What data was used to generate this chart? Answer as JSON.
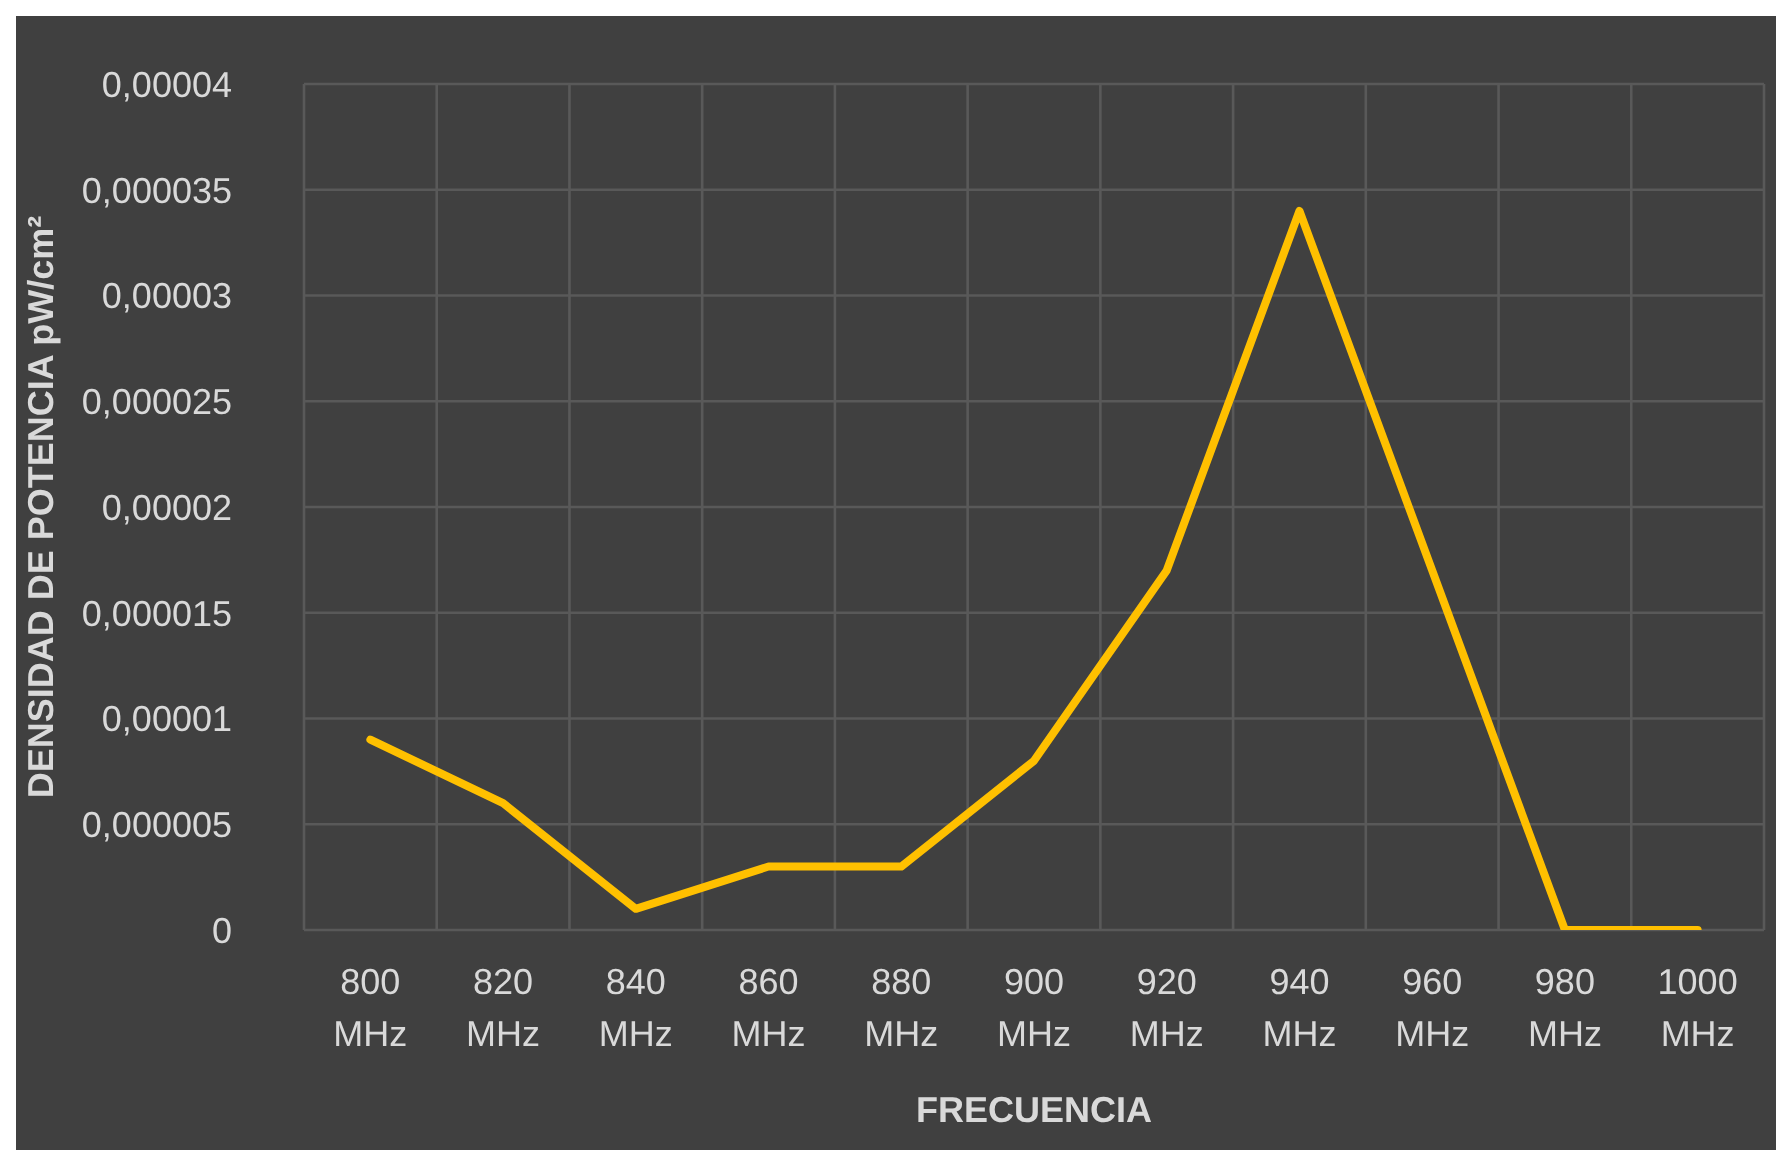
{
  "chart_data": {
    "type": "line",
    "xlabel": "FRECUENCIA",
    "ylabel": "DENSIDAD DE POTENCIA pW/cm²",
    "categories": [
      "800 MHz",
      "820 MHz",
      "840 MHz",
      "860 MHz",
      "880 MHz",
      "900 MHz",
      "920 MHz",
      "940 MHz",
      "960 MHz",
      "980 MHz",
      "1000 MHz"
    ],
    "series": [
      {
        "color": "#ffc000",
        "values": [
          9e-06,
          6e-06,
          1e-06,
          3e-06,
          3e-06,
          8e-06,
          1.7e-05,
          3.4e-05,
          1.7e-05,
          0,
          0
        ]
      }
    ],
    "ylim": [
      0,
      4e-05
    ],
    "yticks": [
      {
        "value": 0,
        "label": "0"
      },
      {
        "value": 5e-06,
        "label": "0,000005"
      },
      {
        "value": 1e-05,
        "label": "0,00001"
      },
      {
        "value": 1.5e-05,
        "label": "0,000015"
      },
      {
        "value": 2e-05,
        "label": "0,00002"
      },
      {
        "value": 2.5e-05,
        "label": "0,000025"
      },
      {
        "value": 3e-05,
        "label": "0,00003"
      },
      {
        "value": 3.5e-05,
        "label": "0,000035"
      },
      {
        "value": 4e-05,
        "label": "0,00004"
      }
    ],
    "grid": true,
    "marker": "none",
    "line_style": "solid"
  }
}
